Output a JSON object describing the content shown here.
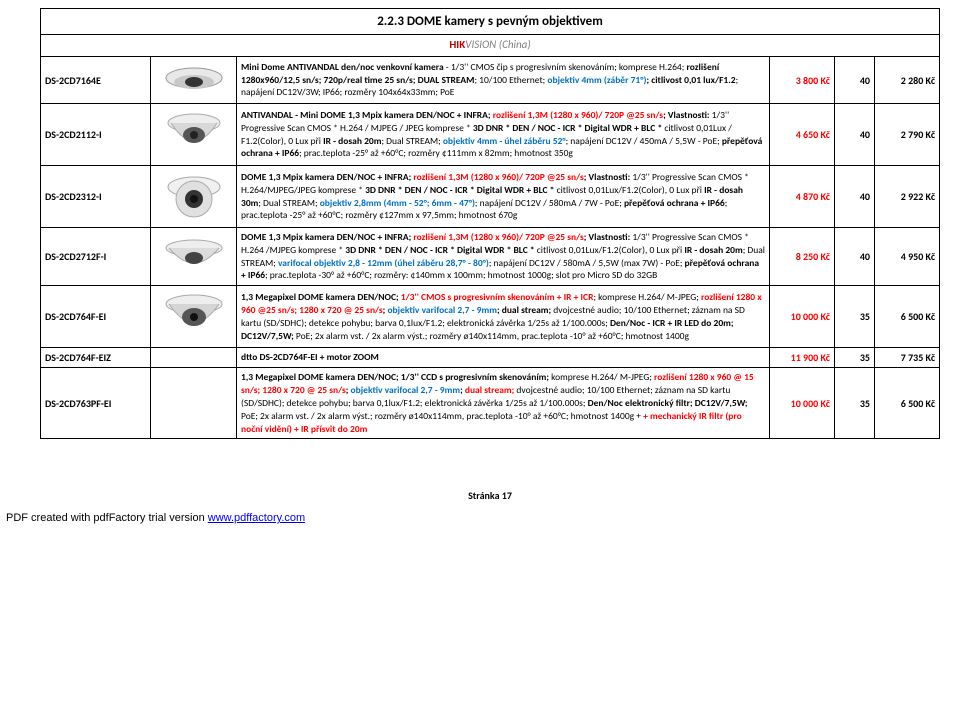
{
  "section": {
    "title": "2.2.3 DOME kamery s pevným objektivem",
    "brand_red": "HIK",
    "brand_gray": "VISION  (China)"
  },
  "rows": [
    {
      "model": "DS-2CD7164E",
      "desc_html": "<b>Mini Dome ANTIVANDAL den/noc venkovní kamera</b> - 1/3'' CMOS čip s progresivním skenováním; komprese H.264; <b>rozlišení 1280x960/12,5 sn/s; 720p/real time 25 sn/s; DUAL STREAM</b>; 10/100 Ethernet; <b><span class='blue'>objektiv 4mm (záběr 71°)</span>; citlivost 0,01 lux/F1.2</b>; napájení DC12V/3W; IP66; rozměry 104x64x33mm; PoE",
      "p1": "3 800 Kč",
      "p2": "40",
      "p3": "2 280 Kč",
      "icon": "dome-mini"
    },
    {
      "model": "DS-2CD2112-I",
      "desc_html": "<b>ANTIVANDAL - Mini DOME 1,3 Mpix kamera DEN/NOC + INFRA;  <span class='red'>rozlišení 1,3M (1280 x 960)/ 720P @25 sn/s</span>;  Vlastnosti:</b> 1/3'' Progressive Scan CMOS * H.264 / MJPEG / JPEG komprese * <b>3D DNR * DEN / NOC - ICR * Digital WDR + BLC *</b> citlivost 0,01Lux / F1.2(Color), 0 Lux při <b>IR - dosah 20m</b>; Dual STREAM; <b><span class='blue'>objektiv 4mm - úhel záběru 52°</span></b>; napájení DC12V / 450mA / 5,5W - PoE; <b>přepěťová ochrana + IP66</b>; prac.teplota -25° až +60°C; rozměry ¢111mm x 82mm; hmotnost 350g",
      "p1": "4 650 Kč",
      "p2": "40",
      "p3": "2 790 Kč",
      "icon": "dome-vandal"
    },
    {
      "model": "DS-2CD2312-I",
      "desc_html": "<b>DOME 1,3 Mpix kamera DEN/NOC + INFRA;  <span class='red'>rozlišení 1,3M (1280 x 960)/ 720P @25 sn/s</span>;  Vlastnosti:</b> 1/3'' Progressive Scan CMOS * H.264/MJPEG/JPEG komprese * <b>3D DNR * DEN / NOC - ICR * Digital WDR + BLC *</b> citlivost 0,01Lux/F1.2(Color), 0 Lux při <b>IR - dosah 30m</b>; Dual STREAM; <b><span class='blue'>objektiv 2,8mm (4mm - 52°; 6mm - 47°)</span></b>; napájení DC12V / 580mA / 7W - PoE; <b>přepěťová ochrana + IP66</b>; prac.teplota -25° až +60°C; rozměry ¢127mm x 97,5mm; hmotnost 670g",
      "p1": "4 870 Kč",
      "p2": "40",
      "p3": "2 922 Kč",
      "icon": "dome-turret"
    },
    {
      "model": "DS-2CD2712F-I",
      "desc_html": "<b>DOME 1,3 Mpix kamera DEN/NOC + INFRA;  <span class='red'>rozlišení 1,3M (1280 x 960)/ 720P @25 sn/s</span>;  Vlastnosti:</b> 1/3'' Progressive Scan CMOS * H.264  /MJPEG komprese * <b>3D DNR * DEN / NOC - ICR * Digital WDR * BLC *</b> citlivost 0,01Lux/F1.2(Color), 0 Lux při <b>IR - dosah 20m</b>; Dual STREAM; <b><span class='blue'>varifocal objektiv 2,8 - 12mm (úhel záběru 28,7° - 80°)</span></b>; napájení DC12V / 580mA / 5,5W (max 7W) - PoE; <b>přepěťová ochrana + IP66</b>; prac.teplota -30° až +60°C; rozměry: ¢140mm x 100mm; hmotnost 1000g; slot pro Micro SD do 32GB",
      "p1": "8 250 Kč",
      "p2": "40",
      "p3": "4 950 Kč",
      "icon": "dome-varifocal"
    },
    {
      "model": "DS-2CD764F-EI",
      "desc_html": "<b>1,3 Megapixel DOME kamera DEN/NOC; <span class='red'>1/3'' CMOS s progresivním skenováním + IR + ICR</span></b>; komprese H.264/ M-JPEG; <b><span class='red'>rozlišení 1280 x 960 @25 sn/s;  1280 x 720 @ 25 sn/s</span>; <span class='blue'>objektiv varifocal 2,7 - 9mm</span>; dual stream;</b> dvojcestné audio; 10/100 Ethernet; záznam na SD kartu (SD/SDHC); detekce pohybu; barva 0,1lux/F1.2; elektronická závěrka 1/25s až 1/100.000s; <b>Den/Noc - ICR + IR LED do 20m; DC12V/7,5W;</b> PoE; 2x alarm vst. / 2x alarm výst.; rozměry ø140x114mm, prac.teplota -10° až +60°C; hmotnost 1400g",
      "p1": "10 000 Kč",
      "p2": "35",
      "p3": "6 500 Kč",
      "icon": "dome-big"
    },
    {
      "model": "DS-2CD764F-EIZ",
      "desc_html": "<b>dtto DS-2CD764F-EI + motor ZOOM</b>",
      "p1": "11 900 Kč",
      "p2": "35",
      "p3": "7 735 Kč",
      "icon": ""
    },
    {
      "model": "DS-2CD763PF-EI",
      "desc_html": "<b>1,3 Megapixel DOME kamera DEN/NOC; 1/3'' CCD s progresivním skenováním;</b> komprese H.264/ M-JPEG; <b><span class='red'>rozlišení 1280 x 960 @ 15 sn/s; 1280 x 720 @ 25 sn/s</span>; <span class='blue'>objektiv varifocal 2,7 - 9mm</span>; <span class='red'>dual stream;</span></b> dvojcestné audio; 10/100 Ethernet; záznam na SD kartu (SD/SDHC); detekce pohybu; barva 0,1lux/F1.2; elektronická závěrka 1/25s až 1/100.000s; <b>Den/Noc elektronický filtr; DC12V/7,5W;</b> PoE; 2x alarm vst. / 2x alarm výst.; rozměry ø140x114mm, prac.teplota -10° až +60°C; hmotnost 1400g + <b><span class='red'>+ mechanický IR filtr (pro noční vidění) + IR přísvit do 20m</span></b>",
      "p1": "10 000 Kč",
      "p2": "35",
      "p3": "6 500 Kč",
      "icon": ""
    }
  ],
  "footer": {
    "page": "Stránka 17",
    "pdf_text": "PDF created with pdfFactory trial version ",
    "pdf_link": "www.pdffactory.com"
  },
  "icons_svg": {
    "dome-mini": "<svg width='70' height='40' viewBox='0 0 70 40'><ellipse cx='35' cy='18' rx='28' ry='10' fill='#e8e8e8' stroke='#999'/><ellipse cx='35' cy='22' rx='20' ry='7' fill='#c8c8c8'/><ellipse cx='35' cy='22' rx='9' ry='5' fill='#333'/></svg>",
    "dome-vandal": "<svg width='70' height='55' viewBox='0 0 70 55'><ellipse cx='35' cy='16' rx='26' ry='9' fill='#eee' stroke='#aaa'/><path d='M12 16 Q35 52 58 16' fill='#d8d8d8' stroke='#aaa'/><ellipse cx='35' cy='28' rx='11' ry='8' fill='#555'/><circle cx='35' cy='28' r='4' fill='#222'/></svg>",
    "dome-turret": "<svg width='70' height='55' viewBox='0 0 70 55'><ellipse cx='35' cy='18' rx='26' ry='10' fill='#f0f0f0' stroke='#aaa'/><circle cx='35' cy='30' r='18' fill='#e0e0e0' stroke='#aaa'/><circle cx='35' cy='30' r='9' fill='#333'/><circle cx='35' cy='30' r='4' fill='#111'/></svg>",
    "dome-varifocal": "<svg width='70' height='45' viewBox='0 0 70 45'><ellipse cx='35' cy='14' rx='28' ry='8' fill='#eee' stroke='#aaa'/><path d='M10 14 Q35 44 60 14' fill='#dcdcdc' stroke='#aaa'/><ellipse cx='35' cy='24' rx='9' ry='6' fill='#444'/></svg>",
    "dome-big": "<svg width='70' height='55' viewBox='0 0 70 55'><ellipse cx='35' cy='15' rx='28' ry='9' fill='#eee' stroke='#aaa'/><path d='M10 15 Q35 52 60 15' fill='#d5d5d5' stroke='#aaa'/><ellipse cx='35' cy='28' rx='12' ry='9' fill='#555'/><circle cx='35' cy='28' r='4' fill='#111'/></svg>"
  }
}
